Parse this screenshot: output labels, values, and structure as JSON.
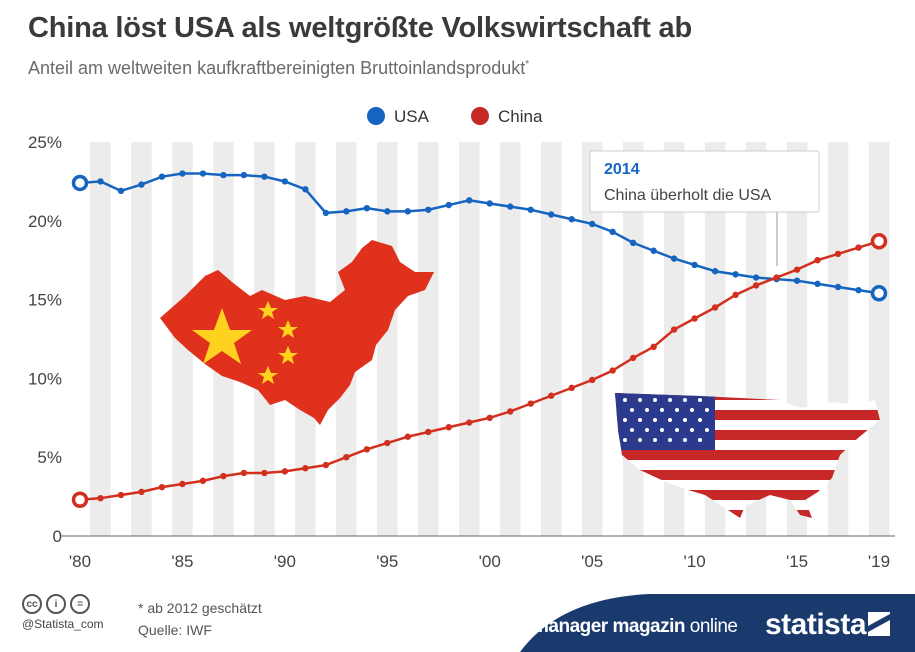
{
  "header": {
    "title": "China löst USA als weltgrößte Volkswirtschaft ab",
    "subtitle": "Anteil am weltweiten kaufkraftbereinigten Bruttoinlandsprodukt",
    "subtitle_mark": "*"
  },
  "annotation": {
    "year": "2014",
    "text": "China überholt die USA"
  },
  "footer": {
    "note": "* ab 2012 geschätzt",
    "source": "Quelle: IWF",
    "handle": "@Statista_com",
    "cc_icons": [
      "cc",
      "i",
      "="
    ],
    "partner_bold": "manager magazin",
    "partner_light": "online",
    "brand": "statista"
  },
  "colors": {
    "usa": "#1565c0",
    "china": "#d32f1e",
    "stripe": "#ececec",
    "footer_band": "#1a3a6e"
  },
  "chart_data": {
    "type": "line",
    "title": "China löst USA als weltgrößte Volkswirtschaft ab",
    "subtitle": "Anteil am weltweiten kaufkraftbereinigten Bruttoinlandsprodukt*",
    "x": [
      1980,
      1981,
      1982,
      1983,
      1984,
      1985,
      1986,
      1987,
      1988,
      1989,
      1990,
      1991,
      1992,
      1993,
      1994,
      1995,
      1996,
      1997,
      1998,
      1999,
      2000,
      2001,
      2002,
      2003,
      2004,
      2005,
      2006,
      2007,
      2008,
      2009,
      2010,
      2011,
      2012,
      2013,
      2014,
      2015,
      2016,
      2017,
      2018,
      2019
    ],
    "x_tick_values": [
      1980,
      1985,
      1990,
      1995,
      2000,
      2005,
      2010,
      2015,
      2019
    ],
    "x_tick_labels": [
      "'80",
      "'85",
      "'90",
      "'95",
      "'00",
      "'05",
      "'10",
      "'15",
      "'19"
    ],
    "y_tick_values": [
      0,
      5,
      10,
      15,
      20,
      25
    ],
    "y_tick_labels": [
      "0",
      "5%",
      "10%",
      "15%",
      "20%",
      "25%"
    ],
    "ylim": [
      0,
      25
    ],
    "legend_position": "top-center",
    "grid": "alternating vertical stripes",
    "series": [
      {
        "name": "USA",
        "color": "#1565c0",
        "values": [
          22.4,
          22.5,
          21.9,
          22.3,
          22.8,
          23.0,
          23.0,
          22.9,
          22.9,
          22.8,
          22.5,
          22.0,
          20.5,
          20.6,
          20.8,
          20.6,
          20.6,
          20.7,
          21.0,
          21.3,
          21.1,
          20.9,
          20.7,
          20.4,
          20.1,
          19.8,
          19.3,
          18.6,
          18.1,
          17.6,
          17.2,
          16.8,
          16.6,
          16.4,
          16.3,
          16.2,
          16.0,
          15.8,
          15.6,
          15.4
        ]
      },
      {
        "name": "China",
        "color": "#d32f1e",
        "values": [
          2.3,
          2.4,
          2.6,
          2.8,
          3.1,
          3.3,
          3.5,
          3.8,
          4.0,
          4.0,
          4.1,
          4.3,
          4.5,
          5.0,
          5.5,
          5.9,
          6.3,
          6.6,
          6.9,
          7.2,
          7.5,
          7.9,
          8.4,
          8.9,
          9.4,
          9.9,
          10.5,
          11.3,
          12.0,
          13.1,
          13.8,
          14.5,
          15.3,
          15.9,
          16.4,
          16.9,
          17.5,
          17.9,
          18.3,
          18.7
        ]
      }
    ]
  }
}
